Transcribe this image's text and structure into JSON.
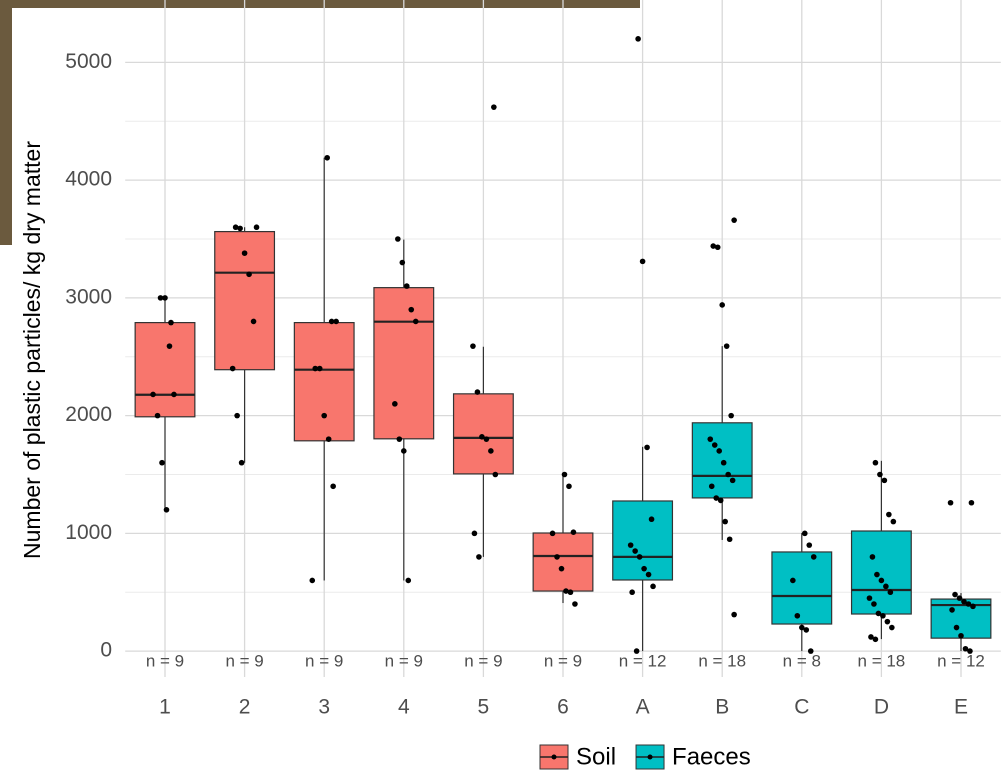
{
  "chart_data": {
    "type": "box",
    "y_label": "Number of plastic particles/ kg dry matter",
    "ylim": [
      -220,
      5530
    ],
    "yticks": [
      0,
      1000,
      2000,
      3000,
      4000,
      5000
    ],
    "yminor": [
      500,
      1500,
      2500,
      3500,
      4500
    ],
    "grid": true,
    "legend": "bottom",
    "series": [
      {
        "name": "Soil",
        "color": "#F8766D",
        "categories": [
          "1",
          "2",
          "3",
          "4",
          "5",
          "6"
        ],
        "boxes": [
          {
            "whisker_low": 1200,
            "q1": 1990,
            "median": 2177,
            "q3": 2790,
            "whisker_high": 3010,
            "n_label": "n = 9",
            "points": [
              3000,
              3000,
              2590,
              2180,
              2180,
              2000,
              1600,
              1200,
              2790
            ]
          },
          {
            "whisker_low": 1600,
            "q1": 2390,
            "median": 3214,
            "q3": 3563,
            "whisker_high": 3600,
            "n_label": "n = 9",
            "points": [
              3600,
              3600,
              3590,
              3380,
              3200,
              2800,
              2400,
              2000,
              1600
            ]
          },
          {
            "whisker_low": 600,
            "q1": 1786,
            "median": 2390,
            "q3": 2790,
            "whisker_high": 4190,
            "n_label": "n = 9",
            "points": [
              4190,
              2800,
              2800,
              2400,
              2400,
              2000,
              1800,
              1400,
              600
            ]
          },
          {
            "whisker_low": 600,
            "q1": 1803,
            "median": 2798,
            "q3": 3087,
            "whisker_high": 3495,
            "n_label": "n = 9",
            "points": [
              3500,
              3300,
              3100,
              2900,
              2800,
              2100,
              1800,
              1700,
              600
            ]
          },
          {
            "whisker_low": 800,
            "q1": 1505,
            "median": 1811,
            "q3": 2185,
            "whisker_high": 2585,
            "n_label": "n = 9",
            "points": [
              4620,
              2590,
              2200,
              1820,
              1800,
              1700,
              1500,
              1000,
              800
            ]
          },
          {
            "whisker_low": 408,
            "q1": 510,
            "median": 808,
            "q3": 1003,
            "whisker_high": 1505,
            "n_label": "n = 9",
            "points": [
              1500,
              1400,
              1010,
              1000,
              800,
              700,
              510,
              500,
              400
            ]
          }
        ]
      },
      {
        "name": "Faeces",
        "color": "#00BFC4",
        "categories": [
          "A",
          "B",
          "C",
          "D",
          "E"
        ],
        "boxes": [
          {
            "whisker_low": 0,
            "q1": 604,
            "median": 800,
            "q3": 1275,
            "whisker_high": 1735,
            "n_label": "n = 12",
            "points": [
              5200,
              3310,
              1730,
              1120,
              900,
              850,
              800,
              700,
              650,
              550,
              500,
              0
            ]
          },
          {
            "whisker_low": 944,
            "q1": 1301,
            "median": 1488,
            "q3": 1939,
            "whisker_high": 2590,
            "n_label": "n = 18",
            "points": [
              3660,
              3440,
              3430,
              2940,
              2590,
              2000,
              1800,
              1750,
              1700,
              1600,
              1500,
              1450,
              1400,
              1300,
              1280,
              1100,
              950,
              310
            ]
          },
          {
            "whisker_low": 0,
            "q1": 230,
            "median": 468,
            "q3": 842,
            "whisker_high": 1003,
            "n_label": "n = 8",
            "points": [
              1000,
              900,
              800,
              600,
              300,
              200,
              180,
              0
            ]
          },
          {
            "whisker_low": 102,
            "q1": 315,
            "median": 519,
            "q3": 1020,
            "whisker_high": 1616,
            "n_label": "n = 18",
            "points": [
              1600,
              1500,
              1450,
              1160,
              1100,
              800,
              650,
              600,
              550,
              500,
              450,
              400,
              320,
              300,
              250,
              200,
              120,
              100
            ]
          },
          {
            "whisker_low": 0,
            "q1": 110,
            "median": 391,
            "q3": 442,
            "whisker_high": 493,
            "n_label": "n = 12",
            "points": [
              1260,
              1260,
              480,
              450,
              420,
              400,
              380,
              350,
              200,
              130,
              20,
              0
            ]
          }
        ]
      }
    ]
  }
}
